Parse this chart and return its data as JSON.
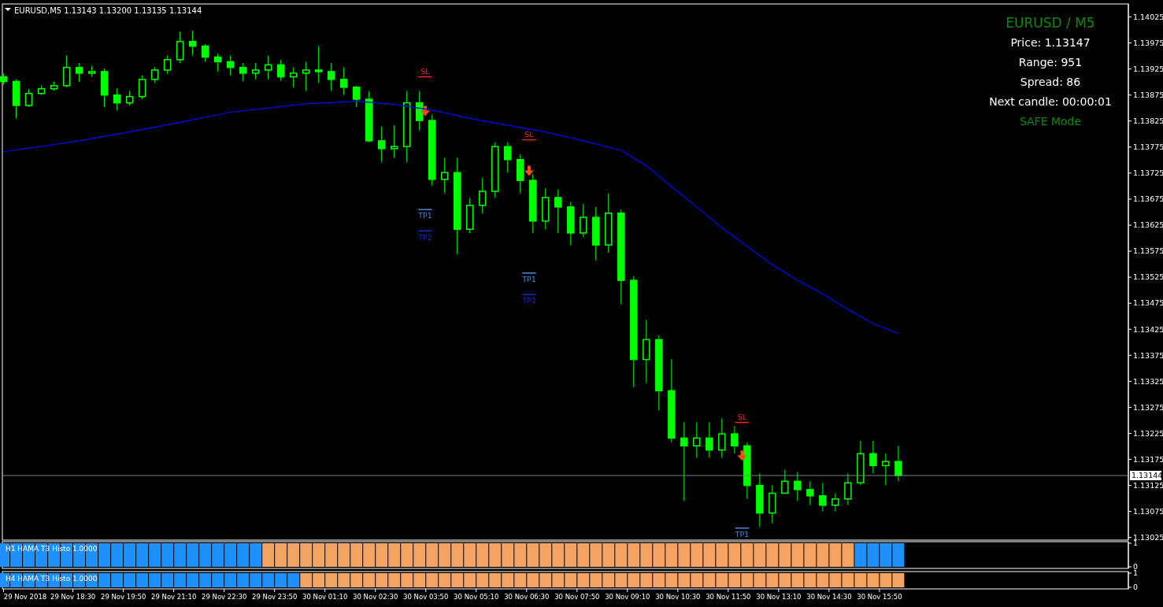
{
  "chart_data": [
    {
      "type": "candlestick",
      "title": "EURUSD,M5  1.13143 1.13200 1.13135 1.13144",
      "color": "#00ff00",
      "x": [
        "2018-11-29T16:40",
        "2018-11-29T17:00",
        "2018-11-29T17:20",
        "2018-11-29T17:40",
        "2018-11-29T18:00",
        "2018-11-29T18:20",
        "2018-11-29T18:40",
        "2018-11-29T19:00",
        "2018-11-29T19:20",
        "2018-11-29T19:40",
        "2018-11-29T20:00",
        "2018-11-29T20:20",
        "2018-11-29T20:40",
        "2018-11-29T21:00",
        "2018-11-29T21:20",
        "2018-11-29T21:40",
        "2018-11-29T22:00",
        "2018-11-29T22:20",
        "2018-11-29T22:40",
        "2018-11-29T23:00",
        "2018-11-29T23:20",
        "2018-11-29T23:40",
        "2018-11-30T00:00",
        "2018-11-30T00:20",
        "2018-11-30T00:40",
        "2018-11-30T01:00",
        "2018-11-30T01:20",
        "2018-11-30T01:40",
        "2018-11-30T02:00",
        "2018-11-30T02:20",
        "2018-11-30T02:40",
        "2018-11-30T03:00",
        "2018-11-30T03:20",
        "2018-11-30T03:40",
        "2018-11-30T04:00",
        "2018-11-30T04:20",
        "2018-11-30T04:40",
        "2018-11-30T05:00",
        "2018-11-30T05:20",
        "2018-11-30T05:40",
        "2018-11-30T06:00",
        "2018-11-30T06:20",
        "2018-11-30T06:40",
        "2018-11-30T07:00",
        "2018-11-30T07:20",
        "2018-11-30T07:40",
        "2018-11-30T08:00",
        "2018-11-30T08:20",
        "2018-11-30T08:40",
        "2018-11-30T09:00",
        "2018-11-30T09:20",
        "2018-11-30T09:40",
        "2018-11-30T10:00",
        "2018-11-30T10:20",
        "2018-11-30T10:40",
        "2018-11-30T11:00",
        "2018-11-30T11:20",
        "2018-11-30T11:40",
        "2018-11-30T12:00",
        "2018-11-30T12:20",
        "2018-11-30T12:40",
        "2018-11-30T13:00",
        "2018-11-30T13:20",
        "2018-11-30T13:40",
        "2018-11-30T14:00",
        "2018-11-30T14:20",
        "2018-11-30T14:40",
        "2018-11-30T15:00",
        "2018-11-30T15:20",
        "2018-11-30T15:40",
        "2018-11-30T16:00",
        "2018-11-30T16:20"
      ],
      "ohlc": [
        [
          1.1391,
          1.13916,
          1.13895,
          1.13901
        ],
        [
          1.13901,
          1.13905,
          1.1383,
          1.13855
        ],
        [
          1.13855,
          1.13887,
          1.13852,
          1.13878
        ],
        [
          1.13878,
          1.13893,
          1.13875,
          1.13887
        ],
        [
          1.13887,
          1.13901,
          1.13883,
          1.13893
        ],
        [
          1.13893,
          1.13951,
          1.1389,
          1.13928
        ],
        [
          1.13928,
          1.13936,
          1.13901,
          1.13917
        ],
        [
          1.13917,
          1.13931,
          1.1391,
          1.1392
        ],
        [
          1.1392,
          1.13926,
          1.13852,
          1.13875
        ],
        [
          1.13875,
          1.13887,
          1.13845,
          1.1386
        ],
        [
          1.1386,
          1.13883,
          1.13855,
          1.13872
        ],
        [
          1.13872,
          1.13913,
          1.13867,
          1.13905
        ],
        [
          1.13905,
          1.13928,
          1.13898,
          1.13923
        ],
        [
          1.13923,
          1.13951,
          1.13916,
          1.13943
        ],
        [
          1.13943,
          1.13996,
          1.13936,
          1.13978
        ],
        [
          1.13978,
          1.13999,
          1.13951,
          1.13969
        ],
        [
          1.13969,
          1.13973,
          1.13939,
          1.13948
        ],
        [
          1.13948,
          1.13955,
          1.1392,
          1.13939
        ],
        [
          1.13939,
          1.13951,
          1.13913,
          1.13928
        ],
        [
          1.13928,
          1.13936,
          1.13902,
          1.13917
        ],
        [
          1.13917,
          1.13936,
          1.13905,
          1.13923
        ],
        [
          1.13923,
          1.13951,
          1.13905,
          1.13933
        ],
        [
          1.13933,
          1.13943,
          1.13902,
          1.1391
        ],
        [
          1.1391,
          1.13928,
          1.1389,
          1.13917
        ],
        [
          1.13917,
          1.13939,
          1.13883,
          1.13923
        ],
        [
          1.13923,
          1.13969,
          1.13898,
          1.1392
        ],
        [
          1.1392,
          1.13936,
          1.13883,
          1.13905
        ],
        [
          1.13905,
          1.13928,
          1.13875,
          1.1389
        ],
        [
          1.1389,
          1.13893,
          1.13852,
          1.13867
        ],
        [
          1.13867,
          1.13883,
          1.13784,
          1.13787
        ],
        [
          1.13787,
          1.13814,
          1.13746,
          1.13772
        ],
        [
          1.13772,
          1.13817,
          1.13754,
          1.13776
        ],
        [
          1.13776,
          1.13883,
          1.13746,
          1.1386
        ],
        [
          1.1386,
          1.13883,
          1.13807,
          1.13826
        ],
        [
          1.13826,
          1.13837,
          1.13701,
          1.13713
        ],
        [
          1.13713,
          1.13754,
          1.13686,
          1.13726
        ],
        [
          1.13726,
          1.13754,
          1.13569,
          1.13617
        ],
        [
          1.13617,
          1.13678,
          1.1361,
          1.13663
        ],
        [
          1.13663,
          1.13716,
          1.13648,
          1.1369
        ],
        [
          1.1369,
          1.13784,
          1.13678,
          1.13776
        ],
        [
          1.13776,
          1.13784,
          1.13726,
          1.13751
        ],
        [
          1.13751,
          1.13761,
          1.13686,
          1.13711
        ],
        [
          1.13711,
          1.13723,
          1.1361,
          1.13633
        ],
        [
          1.13633,
          1.13696,
          1.13617,
          1.13678
        ],
        [
          1.13678,
          1.13693,
          1.1361,
          1.1366
        ],
        [
          1.1366,
          1.1367,
          1.13587,
          1.1361
        ],
        [
          1.1361,
          1.13666,
          1.13602,
          1.1364
        ],
        [
          1.1364,
          1.1366,
          1.13557,
          1.13587
        ],
        [
          1.13587,
          1.13686,
          1.13572,
          1.13648
        ],
        [
          1.13648,
          1.13655,
          1.13473,
          1.13519
        ],
        [
          1.13519,
          1.13527,
          1.13314,
          1.13367
        ],
        [
          1.13367,
          1.13443,
          1.13322,
          1.13405
        ],
        [
          1.13405,
          1.13413,
          1.13269,
          1.13307
        ],
        [
          1.13307,
          1.13367,
          1.13208,
          1.13216
        ],
        [
          1.13216,
          1.13246,
          1.13095,
          1.13201
        ],
        [
          1.13201,
          1.13246,
          1.13178,
          1.13216
        ],
        [
          1.13216,
          1.13246,
          1.13178,
          1.13193
        ],
        [
          1.13193,
          1.13254,
          1.13178,
          1.13224
        ],
        [
          1.13224,
          1.13239,
          1.13186,
          1.13201
        ],
        [
          1.13201,
          1.13208,
          1.13099,
          1.13125
        ],
        [
          1.13125,
          1.13148,
          1.13045,
          1.13072
        ],
        [
          1.13072,
          1.13125,
          1.13052,
          1.1311
        ],
        [
          1.1311,
          1.13155,
          1.1311,
          1.13133
        ],
        [
          1.13133,
          1.13151,
          1.13095,
          1.13117
        ],
        [
          1.13117,
          1.13133,
          1.13087,
          1.13105
        ],
        [
          1.13105,
          1.1313,
          1.13075,
          1.13087
        ],
        [
          1.13087,
          1.1311,
          1.13075,
          1.13099
        ],
        [
          1.13099,
          1.13148,
          1.13087,
          1.1313
        ],
        [
          1.1313,
          1.13211,
          1.13125,
          1.13186
        ],
        [
          1.13186,
          1.13211,
          1.13148,
          1.13163
        ],
        [
          1.13163,
          1.13186,
          1.13125,
          1.13171
        ],
        [
          1.13171,
          1.13201,
          1.13133,
          1.13144
        ]
      ],
      "series": [
        {
          "type": "line",
          "name": "SL",
          "color": "#ff2020",
          "x": [
            "2018-11-30T03:38",
            "2018-11-30T04:00"
          ],
          "values": [
            1.1391,
            1.1391
          ]
        },
        {
          "type": "line",
          "name": "TP1",
          "color": "#4a86d8",
          "x": [
            "2018-11-30T03:38",
            "2018-11-30T04:00"
          ],
          "values": [
            1.13655,
            1.13655
          ]
        },
        {
          "type": "line",
          "name": "TP2",
          "color": "#1030c0",
          "x": [
            "2018-11-30T03:38",
            "2018-11-30T04:00"
          ],
          "values": [
            1.13614,
            1.13614
          ]
        },
        {
          "type": "line",
          "name": "SL",
          "color": "#ff2020",
          "x": [
            "2018-11-30T06:23",
            "2018-11-30T06:45"
          ],
          "values": [
            1.13789,
            1.13789
          ]
        },
        {
          "type": "line",
          "name": "TP1",
          "color": "#4a86d8",
          "x": [
            "2018-11-30T06:23",
            "2018-11-30T06:45"
          ],
          "values": [
            1.13533,
            1.13533
          ]
        },
        {
          "type": "line",
          "name": "TP2",
          "color": "#1030c0",
          "x": [
            "2018-11-30T06:23",
            "2018-11-30T06:45"
          ],
          "values": [
            1.13492,
            1.13492
          ]
        },
        {
          "type": "line",
          "name": "SL",
          "color": "#ff2020",
          "x": [
            "2018-11-30T12:01",
            "2018-11-30T12:23"
          ],
          "values": [
            1.13246,
            1.13246
          ]
        },
        {
          "type": "line",
          "name": "TP1",
          "color": "#4a86d8",
          "x": [
            "2018-11-30T12:01",
            "2018-11-30T12:23"
          ],
          "values": [
            1.13043,
            1.13043
          ]
        },
        {
          "type": "scatter",
          "marker": "triangle",
          "color": "#ff4a10",
          "x": [
            "2018-11-30T03:49",
            "2018-11-30T06:34",
            "2018-11-30T12:12"
          ],
          "values": [
            1.13845,
            1.1373,
            1.13183
          ]
        },
        {
          "type": "line",
          "color": "#0000ff",
          "x": [
            "2018-11-29T16:40",
            "2018-11-29T18:40",
            "2018-11-29T20:40",
            "2018-11-29T22:40",
            "2018-11-30T00:40",
            "2018-11-30T02:00",
            "2018-11-30T03:00",
            "2018-11-30T04:00",
            "2018-11-30T05:00",
            "2018-11-30T06:00",
            "2018-11-30T07:00",
            "2018-11-30T08:00",
            "2018-11-30T09:00",
            "2018-11-30T09:40",
            "2018-11-30T10:20",
            "2018-11-30T11:00",
            "2018-11-30T11:40",
            "2018-11-30T12:20",
            "2018-11-30T13:00",
            "2018-11-30T13:40",
            "2018-11-30T14:20",
            "2018-11-30T15:00",
            "2018-11-30T15:40",
            "2018-11-30T16:20"
          ],
          "values": [
            1.13766,
            1.13787,
            1.13813,
            1.13842,
            1.13858,
            1.13863,
            1.13857,
            1.13846,
            1.1383,
            1.13817,
            1.13804,
            1.13787,
            1.13769,
            1.13739,
            1.13699,
            1.1366,
            1.1362,
            1.13584,
            1.13549,
            1.13519,
            1.13493,
            1.13463,
            1.13436,
            1.13417
          ]
        }
      ],
      "xlim": [
        "2018-11-29T16:38",
        "2018-11-30T22:25"
      ],
      "ylim": [
        1.1302,
        1.1405
      ],
      "yticks": [
        1.13025,
        1.13075,
        1.13125,
        1.13175,
        1.13225,
        1.13275,
        1.13325,
        1.13375,
        1.13425,
        1.13475,
        1.13525,
        1.13575,
        1.13625,
        1.13675,
        1.13725,
        1.13775,
        1.13825,
        1.13875,
        1.13925,
        1.13975,
        1.14025
      ],
      "tick_labels": "y",
      "ref_lines": [
        {
          "axis": "y",
          "value": 1.13144,
          "label": "1.13144",
          "color": "#808080"
        }
      ],
      "annotations": [
        "EURUSD  /  M5",
        "Price: 1.13147",
        "Range: 951",
        "Spread: 86",
        "Next candle: 00:00:01",
        "SAFE Mode"
      ]
    },
    {
      "type": "bar",
      "title": "H1  HAMA T3 Histo 1.0000",
      "x": [
        "2018-11-29T16:40",
        "2018-11-29T17:00",
        "2018-11-29T17:20",
        "2018-11-29T17:40",
        "2018-11-29T18:00",
        "2018-11-29T18:20",
        "2018-11-29T18:40",
        "2018-11-29T19:00",
        "2018-11-29T19:20",
        "2018-11-29T19:40",
        "2018-11-29T20:00",
        "2018-11-29T20:20",
        "2018-11-29T20:40",
        "2018-11-29T21:00",
        "2018-11-29T21:20",
        "2018-11-29T21:40",
        "2018-11-29T22:00",
        "2018-11-29T22:20",
        "2018-11-29T22:40",
        "2018-11-29T23:00",
        "2018-11-29T23:20",
        "2018-11-29T23:40",
        "2018-11-30T00:00",
        "2018-11-30T00:20",
        "2018-11-30T00:40",
        "2018-11-30T01:00",
        "2018-11-30T01:20",
        "2018-11-30T01:40",
        "2018-11-30T02:00",
        "2018-11-30T02:20",
        "2018-11-30T02:40",
        "2018-11-30T03:00",
        "2018-11-30T03:20",
        "2018-11-30T03:40",
        "2018-11-30T04:00",
        "2018-11-30T04:20",
        "2018-11-30T04:40",
        "2018-11-30T05:00",
        "2018-11-30T05:20",
        "2018-11-30T05:40",
        "2018-11-30T06:00",
        "2018-11-30T06:20",
        "2018-11-30T06:40",
        "2018-11-30T07:00",
        "2018-11-30T07:20",
        "2018-11-30T07:40",
        "2018-11-30T08:00",
        "2018-11-30T08:20",
        "2018-11-30T08:40",
        "2018-11-30T09:00",
        "2018-11-30T09:20",
        "2018-11-30T09:40",
        "2018-11-30T10:00",
        "2018-11-30T10:20",
        "2018-11-30T10:40",
        "2018-11-30T11:00",
        "2018-11-30T11:20",
        "2018-11-30T11:40",
        "2018-11-30T12:00",
        "2018-11-30T12:20",
        "2018-11-30T12:40",
        "2018-11-30T13:00",
        "2018-11-30T13:20",
        "2018-11-30T13:40",
        "2018-11-30T14:00",
        "2018-11-30T14:20",
        "2018-11-30T14:40",
        "2018-11-30T15:00",
        "2018-11-30T15:20",
        "2018-11-30T15:40",
        "2018-11-30T16:00",
        "2018-11-30T16:20"
      ],
      "values": [
        1,
        1,
        1,
        1,
        1,
        1,
        1,
        1,
        1,
        1,
        1,
        1,
        1,
        1,
        1,
        1,
        1,
        1,
        1,
        1,
        1,
        1,
        1,
        1,
        1,
        1,
        1,
        1,
        1,
        1,
        1,
        1,
        1,
        1,
        1,
        1,
        1,
        1,
        1,
        1,
        1,
        1,
        1,
        1,
        1,
        1,
        1,
        1,
        1,
        1,
        1,
        1,
        1,
        1,
        1,
        1,
        1,
        1,
        1,
        1,
        1,
        1,
        1,
        1,
        1,
        1,
        1,
        1,
        1,
        1,
        1,
        1
      ],
      "colors": [
        "#1e90ff",
        "#1e90ff",
        "#1e90ff",
        "#1e90ff",
        "#1e90ff",
        "#1e90ff",
        "#1e90ff",
        "#1e90ff",
        "#1e90ff",
        "#1e90ff",
        "#1e90ff",
        "#1e90ff",
        "#1e90ff",
        "#1e90ff",
        "#1e90ff",
        "#1e90ff",
        "#1e90ff",
        "#1e90ff",
        "#1e90ff",
        "#1e90ff",
        "#1e90ff",
        "#f4a460",
        "#f4a460",
        "#f4a460",
        "#f4a460",
        "#f4a460",
        "#f4a460",
        "#f4a460",
        "#f4a460",
        "#f4a460",
        "#f4a460",
        "#f4a460",
        "#f4a460",
        "#f4a460",
        "#f4a460",
        "#f4a460",
        "#f4a460",
        "#f4a460",
        "#f4a460",
        "#f4a460",
        "#f4a460",
        "#f4a460",
        "#f4a460",
        "#f4a460",
        "#f4a460",
        "#f4a460",
        "#f4a460",
        "#f4a460",
        "#f4a460",
        "#f4a460",
        "#f4a460",
        "#f4a460",
        "#f4a460",
        "#f4a460",
        "#f4a460",
        "#f4a460",
        "#f4a460",
        "#f4a460",
        "#f4a460",
        "#f4a460",
        "#f4a460",
        "#f4a460",
        "#f4a460",
        "#f4a460",
        "#f4a460",
        "#f4a460",
        "#f4a460",
        "#f4a460",
        "#1e90ff",
        "#1e90ff",
        "#1e90ff",
        "#1e90ff"
      ],
      "xlim": [
        "2018-11-29T16:38",
        "2018-11-30T22:25"
      ],
      "ylim": [
        0,
        1
      ],
      "yticks": [
        0,
        1
      ],
      "tick_labels": "y"
    },
    {
      "type": "bar",
      "title": "H4  HAMA T3 Histo 1.0000",
      "x": [
        "2018-11-29T16:40",
        "2018-11-29T17:00",
        "2018-11-29T17:20",
        "2018-11-29T17:40",
        "2018-11-29T18:00",
        "2018-11-29T18:20",
        "2018-11-29T18:40",
        "2018-11-29T19:00",
        "2018-11-29T19:20",
        "2018-11-29T19:40",
        "2018-11-29T20:00",
        "2018-11-29T20:20",
        "2018-11-29T20:40",
        "2018-11-29T21:00",
        "2018-11-29T21:20",
        "2018-11-29T21:40",
        "2018-11-29T22:00",
        "2018-11-29T22:20",
        "2018-11-29T22:40",
        "2018-11-29T23:00",
        "2018-11-29T23:20",
        "2018-11-29T23:40",
        "2018-11-30T00:00",
        "2018-11-30T00:20",
        "2018-11-30T00:40",
        "2018-11-30T01:00",
        "2018-11-30T01:20",
        "2018-11-30T01:40",
        "2018-11-30T02:00",
        "2018-11-30T02:20",
        "2018-11-30T02:40",
        "2018-11-30T03:00",
        "2018-11-30T03:20",
        "2018-11-30T03:40",
        "2018-11-30T04:00",
        "2018-11-30T04:20",
        "2018-11-30T04:40",
        "2018-11-30T05:00",
        "2018-11-30T05:20",
        "2018-11-30T05:40",
        "2018-11-30T06:00",
        "2018-11-30T06:20",
        "2018-11-30T06:40",
        "2018-11-30T07:00",
        "2018-11-30T07:20",
        "2018-11-30T07:40",
        "2018-11-30T08:00",
        "2018-11-30T08:20",
        "2018-11-30T08:40",
        "2018-11-30T09:00",
        "2018-11-30T09:20",
        "2018-11-30T09:40",
        "2018-11-30T10:00",
        "2018-11-30T10:20",
        "2018-11-30T10:40",
        "2018-11-30T11:00",
        "2018-11-30T11:20",
        "2018-11-30T11:40",
        "2018-11-30T12:00",
        "2018-11-30T12:20",
        "2018-11-30T12:40",
        "2018-11-30T13:00",
        "2018-11-30T13:20",
        "2018-11-30T13:40",
        "2018-11-30T14:00",
        "2018-11-30T14:20",
        "2018-11-30T14:40",
        "2018-11-30T15:00",
        "2018-11-30T15:20",
        "2018-11-30T15:40",
        "2018-11-30T16:00",
        "2018-11-30T16:20"
      ],
      "values": [
        1,
        1,
        1,
        1,
        1,
        1,
        1,
        1,
        1,
        1,
        1,
        1,
        1,
        1,
        1,
        1,
        1,
        1,
        1,
        1,
        1,
        1,
        1,
        1,
        1,
        1,
        1,
        1,
        1,
        1,
        1,
        1,
        1,
        1,
        1,
        1,
        1,
        1,
        1,
        1,
        1,
        1,
        1,
        1,
        1,
        1,
        1,
        1,
        1,
        1,
        1,
        1,
        1,
        1,
        1,
        1,
        1,
        1,
        1,
        1,
        1,
        1,
        1,
        1,
        1,
        1,
        1,
        1,
        1,
        1,
        1,
        1
      ],
      "colors": [
        "#1e90ff",
        "#1e90ff",
        "#1e90ff",
        "#1e90ff",
        "#1e90ff",
        "#1e90ff",
        "#1e90ff",
        "#1e90ff",
        "#1e90ff",
        "#1e90ff",
        "#1e90ff",
        "#1e90ff",
        "#1e90ff",
        "#1e90ff",
        "#1e90ff",
        "#1e90ff",
        "#1e90ff",
        "#1e90ff",
        "#1e90ff",
        "#1e90ff",
        "#1e90ff",
        "#1e90ff",
        "#1e90ff",
        "#1e90ff",
        "#f4a460",
        "#f4a460",
        "#f4a460",
        "#f4a460",
        "#f4a460",
        "#f4a460",
        "#f4a460",
        "#f4a460",
        "#f4a460",
        "#f4a460",
        "#f4a460",
        "#f4a460",
        "#f4a460",
        "#f4a460",
        "#f4a460",
        "#f4a460",
        "#f4a460",
        "#f4a460",
        "#f4a460",
        "#f4a460",
        "#f4a460",
        "#f4a460",
        "#f4a460",
        "#f4a460",
        "#f4a460",
        "#f4a460",
        "#f4a460",
        "#f4a460",
        "#f4a460",
        "#f4a460",
        "#f4a460",
        "#f4a460",
        "#f4a460",
        "#f4a460",
        "#f4a460",
        "#f4a460",
        "#f4a460",
        "#f4a460",
        "#f4a460",
        "#f4a460",
        "#f4a460",
        "#f4a460",
        "#f4a460",
        "#f4a460",
        "#f4a460",
        "#f4a460",
        "#f4a460",
        "#f4a460"
      ],
      "xlim": [
        "2018-11-29T16:38",
        "2018-11-30T22:25"
      ],
      "xticks": [
        {
          "value": "2018-11-29T16:40",
          "label": "29 Nov 2018"
        },
        {
          "value": "2018-11-29T18:30",
          "label": "29 Nov 18:30"
        },
        {
          "value": "2018-11-29T19:50",
          "label": "29 Nov 19:50"
        },
        {
          "value": "2018-11-29T21:10",
          "label": "29 Nov 21:10"
        },
        {
          "value": "2018-11-29T22:30",
          "label": "29 Nov 22:30"
        },
        {
          "value": "2018-11-29T23:50",
          "label": "29 Nov 23:50"
        },
        {
          "value": "2018-11-30T01:10",
          "label": "30 Nov 01:10"
        },
        {
          "value": "2018-11-30T02:30",
          "label": "30 Nov 02:30"
        },
        {
          "value": "2018-11-30T03:50",
          "label": "30 Nov 03:50"
        },
        {
          "value": "2018-11-30T05:10",
          "label": "30 Nov 05:10"
        },
        {
          "value": "2018-11-30T06:30",
          "label": "30 Nov 06:30"
        },
        {
          "value": "2018-11-30T07:50",
          "label": "30 Nov 07:50"
        },
        {
          "value": "2018-11-30T09:10",
          "label": "30 Nov 09:10"
        },
        {
          "value": "2018-11-30T10:30",
          "label": "30 Nov 10:30"
        },
        {
          "value": "2018-11-30T11:50",
          "label": "30 Nov 11:50"
        },
        {
          "value": "2018-11-30T13:10",
          "label": "30 Nov 13:10"
        },
        {
          "value": "2018-11-30T14:30",
          "label": "30 Nov 14:30"
        },
        {
          "value": "2018-11-30T15:50",
          "label": "30 Nov 15:50"
        }
      ],
      "ylim": [
        0,
        1
      ],
      "yticks": [
        0,
        1
      ]
    }
  ]
}
